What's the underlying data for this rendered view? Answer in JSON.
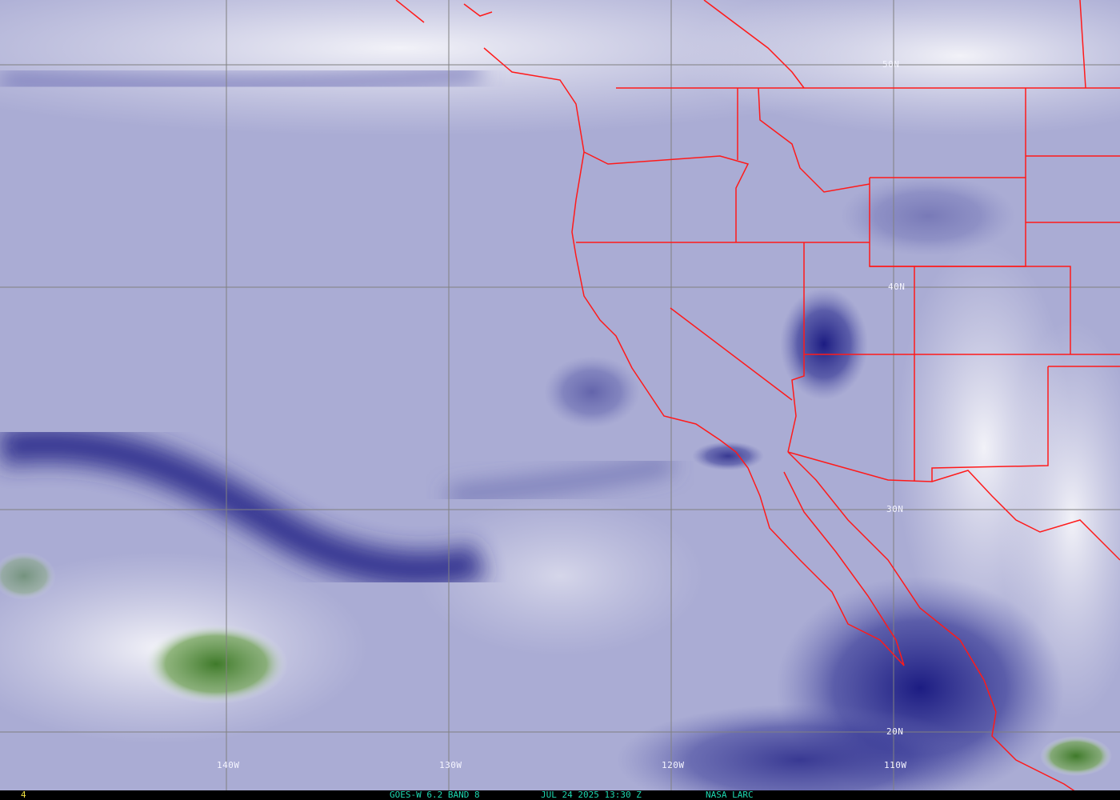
{
  "product": {
    "satellite_caption": "GOES-W 6.2 BAND 8",
    "datetime": "JUL 24 2025 13:30 Z",
    "credit": "NASA LARC",
    "frame_number": "4"
  },
  "grid": {
    "latitude_labels": [
      "50N",
      "40N",
      "30N",
      "20N"
    ],
    "longitude_labels": [
      "140W",
      "130W",
      "120W",
      "110W"
    ]
  },
  "colors": {
    "boundary": "#ff1a1a",
    "grid": "#808080",
    "caption": "#1ed6b0",
    "frame_number": "#f0e040",
    "moist": "#e8e8f4",
    "dry": "#1a1a80",
    "cloud": "#3f7a2a"
  }
}
